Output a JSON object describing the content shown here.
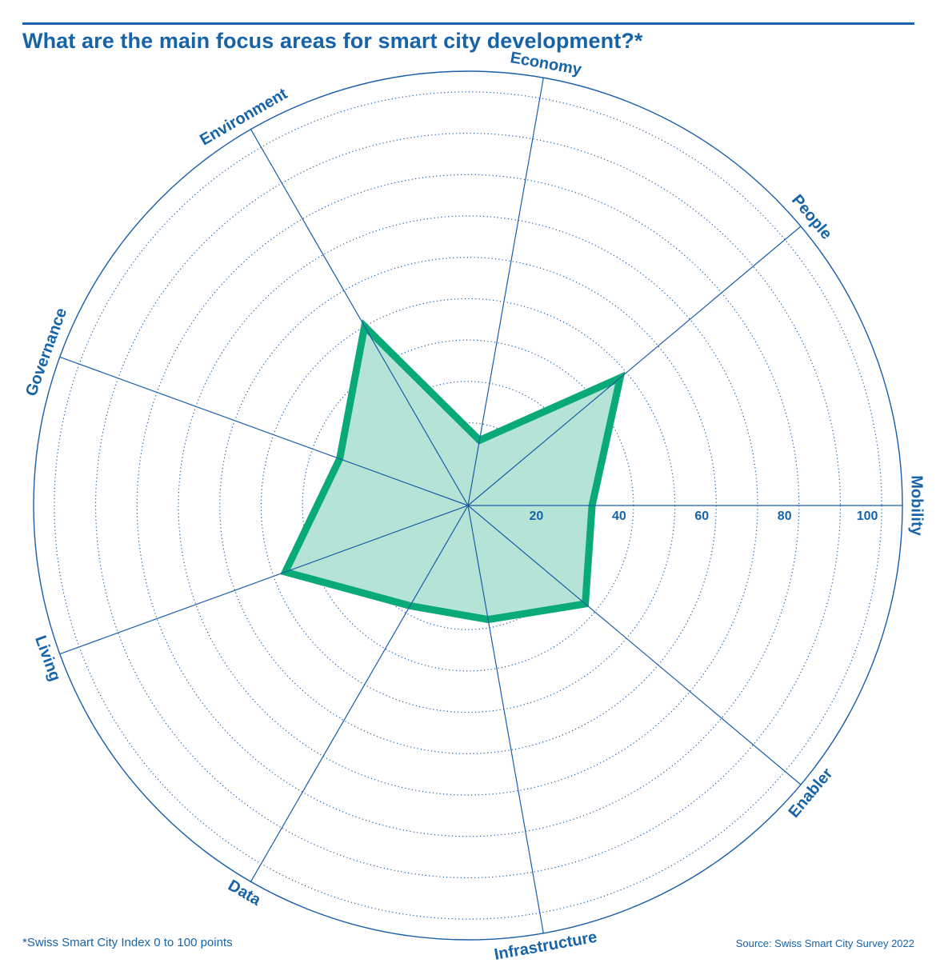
{
  "title": "What are the main focus areas for smart city development?*",
  "footnote": "*Swiss Smart City Index 0 to 100 points",
  "source": "Source: Swiss Smart City Survey 2022",
  "colors": {
    "text": "#1763a8",
    "axis": "#1a5ea8",
    "series_line": "#0aa978",
    "series_fill": "#b5e4d6"
  },
  "chart_data": {
    "type": "radar",
    "title": "What are the main focus areas for smart city development?*",
    "categories": [
      "Mobility",
      "People",
      "Economy",
      "Environment",
      "Governance",
      "Living",
      "Data",
      "Infrastructure",
      "Enabler"
    ],
    "series": [
      {
        "values": [
          30,
          48,
          16,
          50,
          33,
          47,
          28,
          28,
          37
        ]
      }
    ],
    "radial_range": [
      0,
      105
    ],
    "radial_gridlines": [
      10,
      20,
      30,
      40,
      50,
      60,
      70,
      80,
      90,
      100
    ],
    "tick_labels": [
      "20",
      "40",
      "60",
      "80",
      "100"
    ],
    "tick_values": [
      20,
      40,
      60,
      80,
      100
    ],
    "grid": true
  }
}
